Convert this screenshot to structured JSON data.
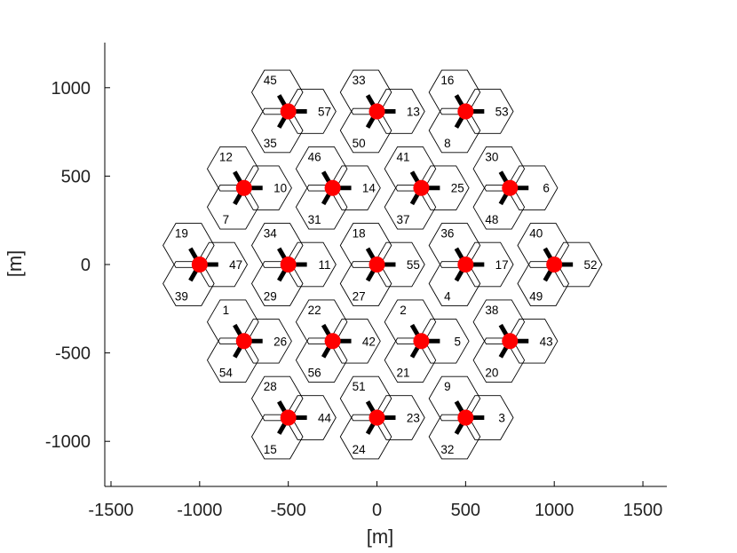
{
  "chart_data": {
    "type": "scatter",
    "title": "",
    "xlabel": "[m]",
    "ylabel": "[m]",
    "xlim": [
      -1535,
      1635
    ],
    "ylim": [
      -1255,
      1255
    ],
    "xticks": [
      -1500,
      -1000,
      -500,
      0,
      500,
      1000,
      1500
    ],
    "yticks": [
      -1000,
      -500,
      0,
      500,
      1000
    ],
    "grid": false,
    "hex_radius": 144,
    "sites": [
      {
        "x": -500,
        "y": 866,
        "labels": [
          "45",
          "57",
          "35"
        ]
      },
      {
        "x": 0,
        "y": 866,
        "labels": [
          "33",
          "13",
          "50"
        ]
      },
      {
        "x": 500,
        "y": 866,
        "labels": [
          "16",
          "53",
          "8"
        ]
      },
      {
        "x": -750,
        "y": 433,
        "labels": [
          "12",
          "10",
          "7"
        ]
      },
      {
        "x": -250,
        "y": 433,
        "labels": [
          "46",
          "14",
          "31"
        ]
      },
      {
        "x": 250,
        "y": 433,
        "labels": [
          "41",
          "25",
          "37"
        ]
      },
      {
        "x": 750,
        "y": 433,
        "labels": [
          "30",
          "6",
          "48"
        ]
      },
      {
        "x": -1000,
        "y": 0,
        "labels": [
          "19",
          "47",
          "39"
        ]
      },
      {
        "x": -500,
        "y": 0,
        "labels": [
          "34",
          "11",
          "29"
        ]
      },
      {
        "x": 0,
        "y": 0,
        "labels": [
          "18",
          "55",
          "27"
        ]
      },
      {
        "x": 500,
        "y": 0,
        "labels": [
          "36",
          "17",
          "4"
        ]
      },
      {
        "x": 1000,
        "y": 0,
        "labels": [
          "40",
          "52",
          "49"
        ]
      },
      {
        "x": -750,
        "y": -433,
        "labels": [
          "1",
          "26",
          "54"
        ]
      },
      {
        "x": -250,
        "y": -433,
        "labels": [
          "22",
          "42",
          "56"
        ]
      },
      {
        "x": 250,
        "y": -433,
        "labels": [
          "2",
          "5",
          "21"
        ]
      },
      {
        "x": 750,
        "y": -433,
        "labels": [
          "38",
          "43",
          "20"
        ]
      },
      {
        "x": -500,
        "y": -866,
        "labels": [
          "28",
          "44",
          "15"
        ]
      },
      {
        "x": 0,
        "y": -866,
        "labels": [
          "51",
          "23",
          "24"
        ]
      },
      {
        "x": 500,
        "y": -866,
        "labels": [
          "9",
          "3",
          "32"
        ]
      }
    ],
    "sector_azimuths_deg": [
      120,
      0,
      240
    ],
    "colors": {
      "site_marker": "#ff0000",
      "antenna": "#000000",
      "hexagon_edge": "#000000",
      "axis": "#000000"
    }
  }
}
